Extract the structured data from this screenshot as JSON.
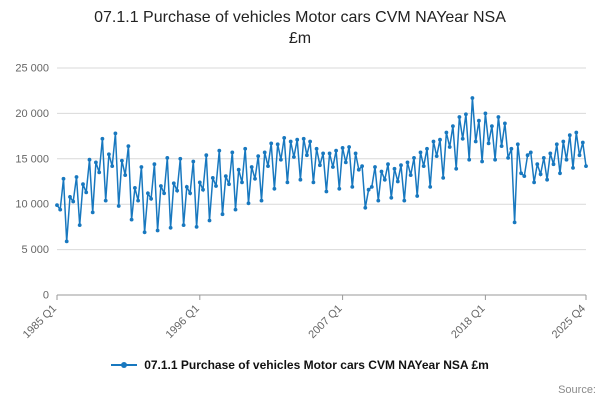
{
  "header": {
    "title_line1": "07.1.1 Purchase of vehicles Motor cars CVM NAYear NSA",
    "title_line2": "£m"
  },
  "footer": {
    "legend_label": "07.1.1 Purchase of vehicles Motor cars CVM NAYear NSA £m",
    "source_label": "Source:"
  },
  "chart_data": {
    "type": "line",
    "title": "07.1.1 Purchase of vehicles Motor cars CVM NAYear NSA £m",
    "xlabel": "",
    "ylabel": "",
    "ylim": [
      0,
      25000
    ],
    "grid": "horizontal",
    "legend_position": "bottom",
    "line_color": "#1878bf",
    "x_start": "1985 Q1",
    "x_end": "2025 Q4",
    "x_frequency": "quarterly",
    "x_tick_labels": [
      "1985 Q1",
      "1996 Q1",
      "2007 Q1",
      "2018 Q1",
      "2025 Q4"
    ],
    "x_tick_indices": [
      0,
      44,
      88,
      132,
      163
    ],
    "y_ticks": [
      0,
      5000,
      10000,
      15000,
      20000,
      25000
    ],
    "y_tick_labels": [
      "0",
      "5 000",
      "10 000",
      "15 000",
      "20 000",
      "25 000"
    ],
    "series": [
      {
        "name": "07.1.1 Purchase of vehicles Motor cars CVM NAYear NSA £m",
        "values": [
          9900,
          9400,
          12800,
          5900,
          10800,
          10300,
          13000,
          7700,
          12200,
          11300,
          14900,
          9100,
          14600,
          13500,
          17200,
          10400,
          15500,
          14200,
          17800,
          9800,
          14800,
          13200,
          16400,
          8300,
          11800,
          10400,
          14100,
          6900,
          11200,
          10600,
          14400,
          7100,
          12000,
          11200,
          15100,
          7400,
          12300,
          11500,
          15000,
          7700,
          11900,
          11200,
          14700,
          7500,
          12400,
          11600,
          15400,
          8200,
          12900,
          12000,
          15900,
          8900,
          13100,
          12200,
          15700,
          9400,
          13800,
          12400,
          16100,
          10100,
          14100,
          12800,
          15300,
          10400,
          15700,
          14200,
          16700,
          11700,
          16600,
          14900,
          17300,
          12400,
          16900,
          15200,
          17100,
          12700,
          17200,
          15400,
          16900,
          12400,
          16100,
          14300,
          15600,
          11400,
          15600,
          14100,
          15900,
          11700,
          16200,
          14600,
          16300,
          11900,
          15600,
          13800,
          14200,
          9600,
          11600,
          11900,
          14100,
          10400,
          13600,
          12700,
          14400,
          10700,
          13900,
          12500,
          14300,
          10400,
          14600,
          13200,
          15100,
          10900,
          15700,
          14200,
          16100,
          11900,
          16900,
          15300,
          17100,
          12900,
          17900,
          16300,
          18600,
          13900,
          19600,
          17200,
          19900,
          14900,
          21700,
          16900,
          19200,
          14700,
          20000,
          16700,
          18600,
          14900,
          19600,
          16400,
          18900,
          15100,
          16100,
          8000,
          16600,
          13400,
          13100,
          15400,
          15700,
          12400,
          14400,
          13300,
          15100,
          12700,
          15600,
          14400,
          16600,
          13400,
          16900,
          14900,
          17600,
          14000,
          17900,
          15400,
          16800,
          14200
        ]
      }
    ]
  }
}
